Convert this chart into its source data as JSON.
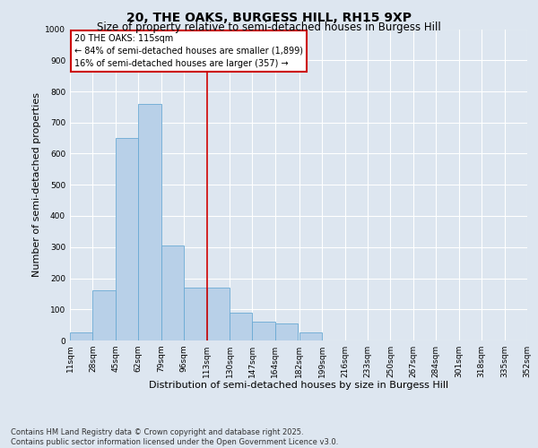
{
  "title": "20, THE OAKS, BURGESS HILL, RH15 9XP",
  "subtitle": "Size of property relative to semi-detached houses in Burgess Hill",
  "xlabel": "Distribution of semi-detached houses by size in Burgess Hill",
  "ylabel": "Number of semi-detached properties",
  "footnote": "Contains HM Land Registry data © Crown copyright and database right 2025.\nContains public sector information licensed under the Open Government Licence v3.0.",
  "bins": [
    11,
    28,
    45,
    62,
    79,
    96,
    113,
    130,
    147,
    164,
    182,
    199,
    216,
    233,
    250,
    267,
    284,
    301,
    318,
    335,
    352
  ],
  "bar_heights": [
    25,
    160,
    650,
    760,
    305,
    170,
    170,
    90,
    60,
    55,
    25,
    0,
    0,
    0,
    0,
    0,
    0,
    0,
    0,
    0
  ],
  "bar_color": "#b8d0e8",
  "bar_edge_color": "#6aaad4",
  "vline_x": 113,
  "vline_color": "#cc0000",
  "ylim": [
    0,
    1000
  ],
  "yticks": [
    0,
    100,
    200,
    300,
    400,
    500,
    600,
    700,
    800,
    900,
    1000
  ],
  "bg_color": "#dde6f0",
  "plot_bg_color": "#dde6f0",
  "legend_text_line1": "20 THE OAKS: 115sqm",
  "legend_text_line2": "← 84% of semi-detached houses are smaller (1,899)",
  "legend_text_line3": "16% of semi-detached houses are larger (357) →",
  "legend_box_color": "#cc0000",
  "title_fontsize": 10,
  "subtitle_fontsize": 8.5,
  "axis_label_fontsize": 8,
  "tick_fontsize": 6.5,
  "legend_fontsize": 7,
  "footnote_fontsize": 6
}
